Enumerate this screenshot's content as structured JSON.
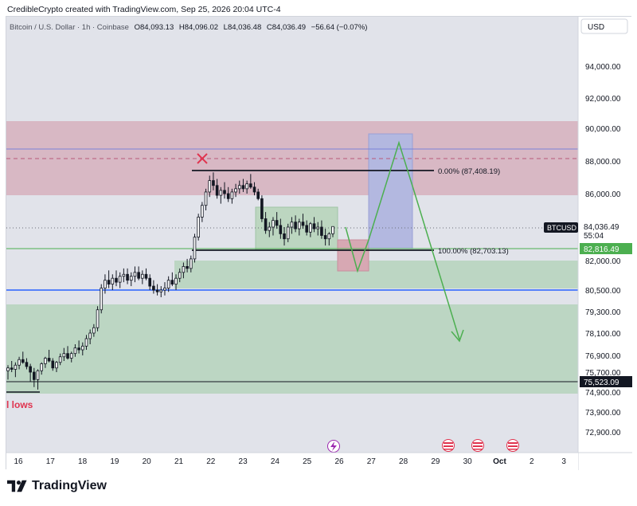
{
  "header": {
    "text": "CredibleCrypto created with TradingView.com, Sep 25, 2026 20:04 UTC-4"
  },
  "footer": {
    "brand": "TradingView"
  },
  "chart_data": {
    "type": "candlestick",
    "symbol_line": {
      "title": "Bitcoin / U.S. Dollar · 1h · Coinbase",
      "o_label": "O",
      "o": "84,093.13",
      "h_label": "H",
      "h": "84,096.02",
      "l_label": "L",
      "l": "84,036.48",
      "c_label": "C",
      "c": "84,036.49",
      "change": "−56.64 (−0.07%)"
    },
    "currency": "USD",
    "y_ticks": [
      {
        "value": 94000,
        "label": "94,000.00"
      },
      {
        "value": 92000,
        "label": "92,000.00"
      },
      {
        "value": 90000,
        "label": "90,000.00"
      },
      {
        "value": 88000,
        "label": "88,000.00"
      },
      {
        "value": 86000,
        "label": "86,000.00"
      },
      {
        "value": 82000,
        "label": "82,000.00"
      },
      {
        "value": 80500,
        "label": "80,500.00"
      },
      {
        "value": 79300,
        "label": "79,300.00"
      },
      {
        "value": 78100,
        "label": "78,100.00"
      },
      {
        "value": 76900,
        "label": "76,900.00"
      },
      {
        "value": 75700,
        "label": "75,700.00"
      },
      {
        "value": 74900,
        "label": "74,900.00"
      },
      {
        "value": 73900,
        "label": "73,900.00"
      },
      {
        "value": 72900,
        "label": "72,900.00"
      }
    ],
    "x_ticks": [
      "16",
      "17",
      "18",
      "19",
      "20",
      "21",
      "22",
      "23",
      "24",
      "25",
      "26",
      "27",
      "28",
      "29",
      "30",
      "Oct",
      "2",
      "3"
    ],
    "last_price": {
      "symbol": "BTCUSD",
      "value": "84,036.49",
      "countdown": "55:04"
    },
    "levels": [
      {
        "label": "82,816.49",
        "value": 82816.49,
        "color": "#4caf50"
      },
      {
        "label": "75,523.09",
        "value": 75523.09,
        "color": "#131722"
      }
    ],
    "fib": [
      {
        "label": "0.00% (87,408.19)",
        "value": 87408.19
      },
      {
        "label": "100.00% (82,703.13)",
        "value": 82703.13
      }
    ],
    "annotation_lows": "l lows",
    "candles": [
      [
        75800,
        76200,
        75400,
        76000
      ],
      [
        76000,
        76500,
        75700,
        75900
      ],
      [
        75900,
        76400,
        75500,
        76200
      ],
      [
        76200,
        76800,
        75900,
        76600
      ],
      [
        76600,
        77100,
        76300,
        76400
      ],
      [
        76400,
        76700,
        75900,
        76100
      ],
      [
        76100,
        76300,
        75300,
        75700
      ],
      [
        75700,
        76000,
        75100,
        75400
      ],
      [
        75400,
        75900,
        75000,
        75800
      ],
      [
        75800,
        76400,
        75600,
        76300
      ],
      [
        76300,
        76800,
        76000,
        76700
      ],
      [
        76700,
        77200,
        76400,
        76500
      ],
      [
        76500,
        76700,
        75800,
        76000
      ],
      [
        76000,
        76500,
        75700,
        76400
      ],
      [
        76400,
        77000,
        76200,
        76800
      ],
      [
        76800,
        77300,
        76500,
        77000
      ],
      [
        77000,
        77400,
        76600,
        76700
      ],
      [
        76700,
        77100,
        76400,
        77000
      ],
      [
        77000,
        77500,
        76800,
        77300
      ],
      [
        77300,
        77700,
        77000,
        77200
      ],
      [
        77200,
        77600,
        76900,
        77400
      ],
      [
        77400,
        78000,
        77200,
        77800
      ],
      [
        77800,
        78300,
        77500,
        78100
      ],
      [
        78100,
        78600,
        77900,
        78400
      ],
      [
        78400,
        79600,
        78200,
        79400
      ],
      [
        79400,
        80800,
        79200,
        80600
      ],
      [
        80600,
        81300,
        80300,
        81000
      ],
      [
        81000,
        81500,
        80600,
        80800
      ],
      [
        80800,
        81300,
        80500,
        81100
      ],
      [
        81100,
        81500,
        80700,
        80900
      ],
      [
        80900,
        81400,
        80600,
        81200
      ],
      [
        81200,
        81600,
        80900,
        81300
      ],
      [
        81300,
        81600,
        80800,
        81000
      ],
      [
        81000,
        81400,
        80700,
        81200
      ],
      [
        81200,
        81700,
        80900,
        81400
      ],
      [
        81400,
        81700,
        81000,
        81100
      ],
      [
        81100,
        81500,
        80800,
        81300
      ],
      [
        81300,
        81600,
        81000,
        81100
      ],
      [
        81100,
        81300,
        80500,
        80700
      ],
      [
        80700,
        81000,
        80300,
        80500
      ],
      [
        80500,
        80800,
        80200,
        80400
      ],
      [
        80400,
        80700,
        80100,
        80500
      ],
      [
        80500,
        80900,
        80200,
        80600
      ],
      [
        80600,
        81200,
        80400,
        81000
      ],
      [
        81000,
        81400,
        80700,
        80800
      ],
      [
        80800,
        81300,
        80500,
        81100
      ],
      [
        81100,
        81600,
        80900,
        81400
      ],
      [
        81400,
        81900,
        81100,
        81700
      ],
      [
        81700,
        82100,
        81400,
        81600
      ],
      [
        81600,
        82300,
        81400,
        82100
      ],
      [
        82100,
        83600,
        81900,
        83400
      ],
      [
        83400,
        84800,
        83200,
        84600
      ],
      [
        84600,
        85500,
        84300,
        85300
      ],
      [
        85300,
        86300,
        85000,
        86100
      ],
      [
        86100,
        87100,
        85800,
        86800
      ],
      [
        86800,
        87300,
        86200,
        86500
      ],
      [
        86500,
        86900,
        85700,
        85900
      ],
      [
        85900,
        86400,
        85400,
        86200
      ],
      [
        86200,
        86700,
        85700,
        86000
      ],
      [
        86000,
        86400,
        85500,
        85700
      ],
      [
        85700,
        86300,
        85400,
        86100
      ],
      [
        86100,
        86600,
        85800,
        86300
      ],
      [
        86300,
        86800,
        86000,
        86500
      ],
      [
        86500,
        86900,
        86100,
        86300
      ],
      [
        86300,
        86800,
        86000,
        86600
      ],
      [
        86600,
        87200,
        86300,
        86400
      ],
      [
        86400,
        86700,
        85900,
        86100
      ],
      [
        86100,
        86300,
        85600,
        85700
      ],
      [
        85700,
        85900,
        84300,
        84500
      ],
      [
        84500,
        84900,
        83600,
        83800
      ],
      [
        83800,
        84300,
        83400,
        84000
      ],
      [
        84000,
        84600,
        83500,
        84400
      ],
      [
        84400,
        84900,
        83900,
        84100
      ],
      [
        84100,
        84500,
        83300,
        83600
      ],
      [
        83600,
        84000,
        82900,
        83300
      ],
      [
        83300,
        84200,
        83100,
        84000
      ],
      [
        84000,
        84600,
        83600,
        84300
      ],
      [
        84300,
        84700,
        83700,
        83900
      ],
      [
        83900,
        84500,
        83500,
        84300
      ],
      [
        84300,
        84800,
        83900,
        84100
      ],
      [
        84100,
        84400,
        83500,
        83700
      ],
      [
        83700,
        84300,
        83400,
        84200
      ],
      [
        84200,
        84600,
        83700,
        83900
      ],
      [
        83900,
        84300,
        83500,
        84000
      ],
      [
        84000,
        84400,
        83300,
        83500
      ],
      [
        83500,
        83900,
        82900,
        83300
      ],
      [
        83300,
        83700,
        82900,
        83600
      ],
      [
        83600,
        84036,
        83400,
        84036
      ]
    ]
  }
}
